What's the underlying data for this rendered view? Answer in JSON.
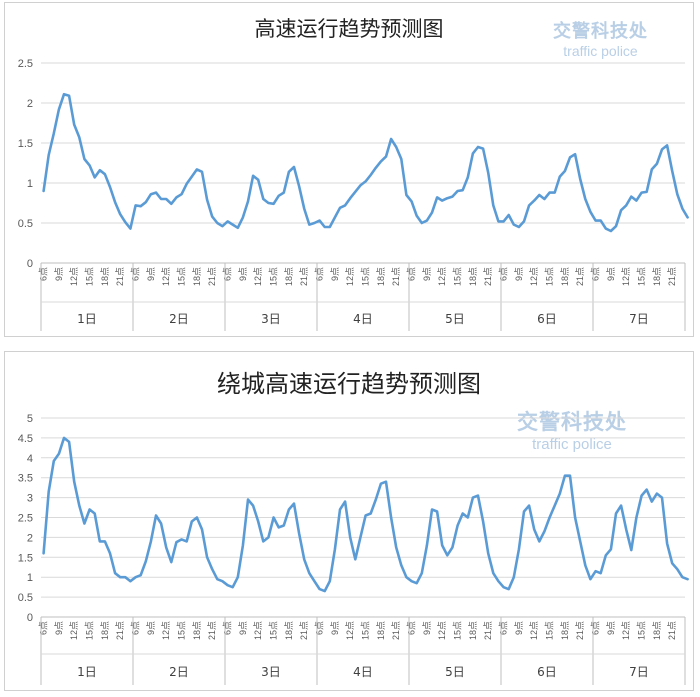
{
  "watermark": {
    "cn": "交警科技处",
    "en": "traffic police"
  },
  "chart_data": [
    {
      "type": "line",
      "title": "高速运行趋势预测图",
      "ylim": [
        0,
        2.5
      ],
      "yticks": [
        "0",
        "0.5",
        "1",
        "1.5",
        "2",
        "2.5"
      ],
      "days": [
        "1日",
        "2日",
        "3日",
        "4日",
        "5日",
        "6日",
        "7日"
      ],
      "hour_tick_labels": [
        "6点",
        "9点",
        "12点",
        "15点",
        "18点",
        "21点"
      ],
      "hours_per_day": 18,
      "line_color": "#5b9bd5",
      "grid": "horizontal",
      "values": [
        0.9,
        1.35,
        1.62,
        1.92,
        2.11,
        2.09,
        1.73,
        1.57,
        1.3,
        1.22,
        1.07,
        1.16,
        1.11,
        0.95,
        0.76,
        0.61,
        0.51,
        0.43,
        0.72,
        0.71,
        0.76,
        0.86,
        0.88,
        0.8,
        0.8,
        0.74,
        0.82,
        0.86,
        0.99,
        1.08,
        1.17,
        1.14,
        0.79,
        0.58,
        0.5,
        0.46,
        0.52,
        0.48,
        0.44,
        0.57,
        0.77,
        1.09,
        1.04,
        0.8,
        0.75,
        0.74,
        0.84,
        0.88,
        1.14,
        1.2,
        0.96,
        0.68,
        0.48,
        0.5,
        0.53,
        0.45,
        0.45,
        0.57,
        0.69,
        0.72,
        0.81,
        0.89,
        0.97,
        1.02,
        1.1,
        1.19,
        1.27,
        1.33,
        1.55,
        1.45,
        1.3,
        0.85,
        0.77,
        0.59,
        0.5,
        0.53,
        0.63,
        0.82,
        0.78,
        0.81,
        0.83,
        0.9,
        0.91,
        1.07,
        1.37,
        1.45,
        1.43,
        1.13,
        0.72,
        0.52,
        0.52,
        0.6,
        0.48,
        0.45,
        0.52,
        0.72,
        0.78,
        0.85,
        0.8,
        0.88,
        0.88,
        1.08,
        1.15,
        1.32,
        1.36,
        1.05,
        0.8,
        0.64,
        0.53,
        0.53,
        0.43,
        0.4,
        0.46,
        0.66,
        0.72,
        0.83,
        0.78,
        0.88,
        0.89,
        1.17,
        1.24,
        1.42,
        1.47,
        1.15,
        0.86,
        0.68,
        0.57
      ]
    },
    {
      "type": "line",
      "title": "绕城高速运行趋势预测图",
      "ylim": [
        0,
        5
      ],
      "yticks": [
        "0",
        "0.5",
        "1",
        "1.5",
        "2",
        "2.5",
        "3",
        "3.5",
        "4",
        "4.5",
        "5"
      ],
      "days": [
        "1日",
        "2日",
        "3日",
        "4日",
        "5日",
        "6日",
        "7日"
      ],
      "hour_tick_labels": [
        "6点",
        "9点",
        "12点",
        "15点",
        "18点",
        "21点"
      ],
      "hours_per_day": 18,
      "line_color": "#5b9bd5",
      "grid": "horizontal",
      "values": [
        1.6,
        3.15,
        3.92,
        4.1,
        4.5,
        4.4,
        3.4,
        2.8,
        2.35,
        2.7,
        2.6,
        1.9,
        1.9,
        1.6,
        1.1,
        1.0,
        1.0,
        0.9,
        1.0,
        1.05,
        1.4,
        1.9,
        2.55,
        2.35,
        1.75,
        1.38,
        1.88,
        1.95,
        1.9,
        2.4,
        2.5,
        2.2,
        1.5,
        1.2,
        0.95,
        0.9,
        0.8,
        0.75,
        1.0,
        1.8,
        2.95,
        2.8,
        2.4,
        1.9,
        2.0,
        2.5,
        2.25,
        2.3,
        2.7,
        2.85,
        2.1,
        1.45,
        1.1,
        0.9,
        0.7,
        0.65,
        0.9,
        1.7,
        2.7,
        2.9,
        2.0,
        1.45,
        2.0,
        2.55,
        2.6,
        2.95,
        3.35,
        3.4,
        2.5,
        1.75,
        1.3,
        1.0,
        0.9,
        0.85,
        1.1,
        1.8,
        2.7,
        2.65,
        1.8,
        1.55,
        1.75,
        2.3,
        2.6,
        2.5,
        3.0,
        3.05,
        2.4,
        1.6,
        1.1,
        0.9,
        0.75,
        0.7,
        1.0,
        1.7,
        2.65,
        2.8,
        2.2,
        1.9,
        2.15,
        2.5,
        2.8,
        3.1,
        3.55,
        3.55,
        2.5,
        1.9,
        1.3,
        0.95,
        1.15,
        1.1,
        1.55,
        1.7,
        2.6,
        2.8,
        2.2,
        1.68,
        2.5,
        3.05,
        3.2,
        2.9,
        3.1,
        3.0,
        1.85,
        1.35,
        1.2,
        1.0,
        0.95
      ]
    }
  ]
}
